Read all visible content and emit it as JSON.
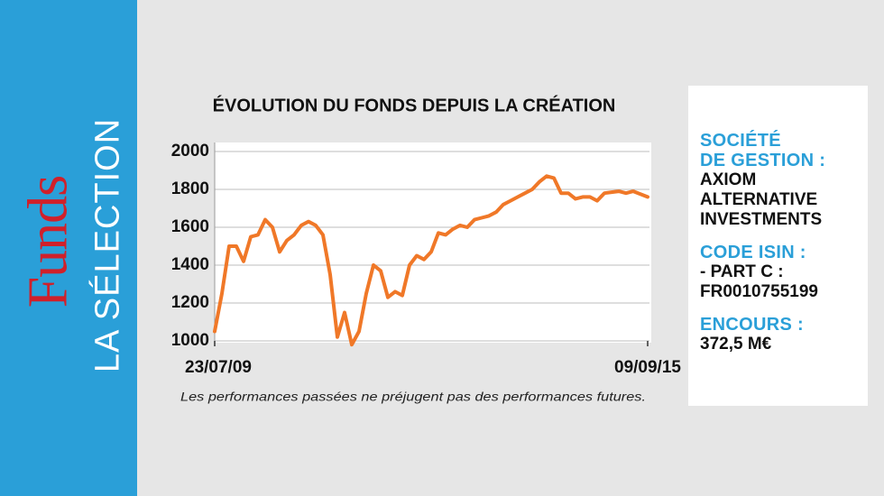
{
  "sidebar": {
    "brand": "Funds",
    "section": "LA SÉLECTION"
  },
  "chart_data": {
    "type": "line",
    "title": "ÉVOLUTION DU FONDS DEPUIS LA CRÉATION",
    "footnote": "Les performances passées ne préjugent pas des performances futures.",
    "categories": [
      "23/07/09",
      null,
      null,
      null,
      null,
      null,
      null,
      null,
      null,
      null,
      null,
      null,
      null,
      null,
      null,
      null,
      null,
      null,
      null,
      null,
      null,
      null,
      null,
      null,
      null,
      null,
      null,
      null,
      null,
      null,
      null,
      null,
      null,
      null,
      null,
      null,
      null,
      null,
      null,
      null,
      null,
      null,
      null,
      null,
      null,
      null,
      null,
      null,
      null,
      null,
      null,
      null,
      null,
      null,
      null,
      null,
      null,
      null,
      null,
      null,
      "09/09/15"
    ],
    "series": [
      {
        "name": "Fonds",
        "color": "#f07828",
        "values": [
          1050,
          1250,
          1500,
          1500,
          1420,
          1550,
          1560,
          1640,
          1600,
          1470,
          1530,
          1560,
          1610,
          1630,
          1610,
          1560,
          1350,
          1020,
          1150,
          980,
          1050,
          1250,
          1400,
          1370,
          1230,
          1260,
          1240,
          1400,
          1450,
          1430,
          1470,
          1570,
          1560,
          1590,
          1610,
          1600,
          1640,
          1650,
          1660,
          1680,
          1720,
          1740,
          1760,
          1780,
          1800,
          1840,
          1870,
          1860,
          1780,
          1780,
          1750,
          1760,
          1760,
          1740,
          1780,
          1785,
          1790,
          1780,
          1790,
          1775,
          1760
        ]
      }
    ],
    "ylim": [
      1000,
      2000
    ],
    "yticks": [
      1000,
      1200,
      1400,
      1600,
      1800,
      2000
    ],
    "grid": true
  },
  "info_box": {
    "items": [
      {
        "label": [
          "SOCIÉTÉ",
          "DE GESTION :"
        ],
        "value": [
          "AXIOM",
          "ALTERNATIVE",
          "INVESTMENTS"
        ]
      },
      {
        "label": [
          "CODE ISIN :"
        ],
        "value": [
          "- PART C :",
          "FR0010755199"
        ]
      },
      {
        "label": [
          "ENCOURS  :"
        ],
        "value": [
          "372,5 M€"
        ]
      }
    ]
  }
}
